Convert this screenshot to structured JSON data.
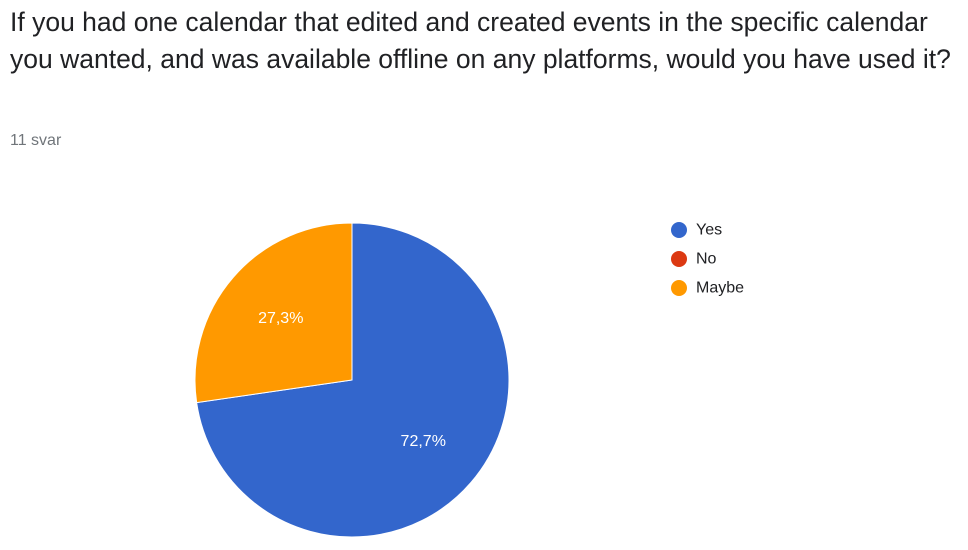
{
  "question": {
    "title": "If you had one calendar that edited and created events in the specific calendar you wanted, and was available offline on any platforms, would you have used it?",
    "response_count": "11 svar"
  },
  "chart_data": {
    "type": "pie",
    "categories": [
      "Yes",
      "No",
      "Maybe"
    ],
    "values": [
      72.7,
      0,
      27.3
    ],
    "value_labels": [
      "72,7%",
      "",
      "27,3%"
    ],
    "colors": [
      "#3366cc",
      "#dc3912",
      "#ff9900"
    ],
    "legend_position": "right",
    "start": "top",
    "direction": "clockwise"
  }
}
